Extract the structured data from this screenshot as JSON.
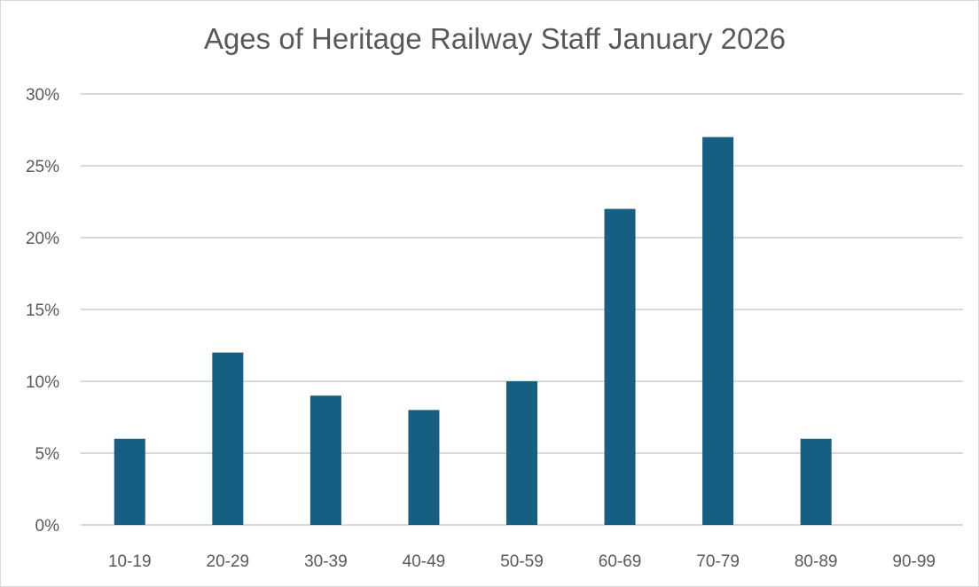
{
  "chart_data": {
    "type": "bar",
    "title": "Ages of Heritage Railway Staff January 2026",
    "xlabel": "",
    "ylabel": "",
    "categories": [
      "10-19",
      "20-29",
      "30-39",
      "40-49",
      "50-59",
      "60-69",
      "70-79",
      "80-89",
      "90-99"
    ],
    "values": [
      6,
      12,
      9,
      8,
      10,
      22,
      27,
      6,
      0
    ],
    "ylim": [
      0,
      30
    ],
    "yticks": [
      0,
      5,
      10,
      15,
      20,
      25,
      30
    ],
    "ytick_labels": [
      "0%",
      "5%",
      "10%",
      "15%",
      "20%",
      "25%",
      "30%"
    ],
    "grid": true,
    "legend": "none",
    "colors": {
      "bar": "#155f82",
      "grid": "#d9d9d9",
      "text": "#595959"
    }
  }
}
